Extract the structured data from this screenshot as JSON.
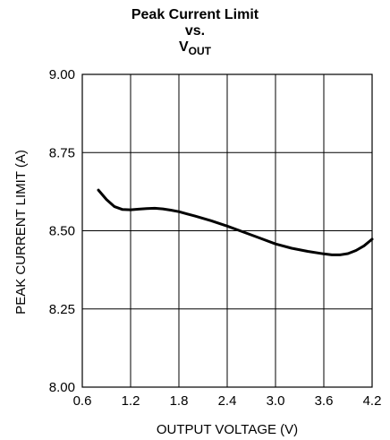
{
  "chart_data": {
    "type": "line",
    "title": {
      "line1": "Peak Current Limit",
      "line2": "vs.",
      "line3_main": "V",
      "line3_sub": "OUT"
    },
    "xlabel": "OUTPUT VOLTAGE (V)",
    "ylabel": "PEAK CURRENT LIMIT (A)",
    "xlim": [
      0.6,
      4.2
    ],
    "ylim": [
      8.0,
      9.0
    ],
    "x_ticks": [
      "0.6",
      "1.2",
      "1.8",
      "2.4",
      "3.0",
      "3.6",
      "4.2"
    ],
    "y_ticks": [
      "8.00",
      "8.25",
      "8.50",
      "8.75",
      "9.00"
    ],
    "grid": true,
    "series": [
      {
        "x": [
          0.8,
          0.9,
          1.0,
          1.1,
          1.2,
          1.3,
          1.4,
          1.5,
          1.6,
          1.7,
          1.8,
          1.9,
          2.0,
          2.2,
          2.4,
          2.6,
          2.8,
          3.0,
          3.2,
          3.4,
          3.6,
          3.7,
          3.8,
          3.9,
          4.0,
          4.1,
          4.2
        ],
        "values": [
          8.63,
          8.6,
          8.577,
          8.568,
          8.567,
          8.569,
          8.571,
          8.572,
          8.57,
          8.566,
          8.561,
          8.554,
          8.547,
          8.532,
          8.515,
          8.496,
          8.477,
          8.458,
          8.444,
          8.434,
          8.426,
          8.423,
          8.423,
          8.427,
          8.437,
          8.452,
          8.473
        ],
        "color": "#000000"
      }
    ]
  }
}
